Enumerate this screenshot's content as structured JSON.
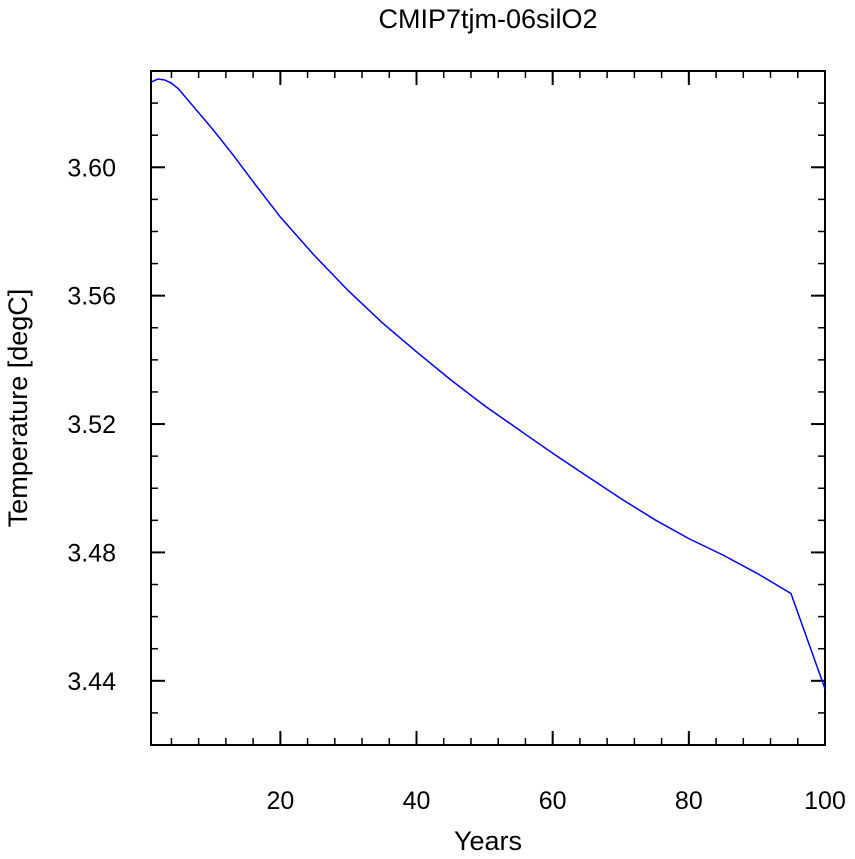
{
  "chart_data": {
    "type": "line",
    "title": "CMIP7tjm-06silO2",
    "xlabel": "Years",
    "ylabel": "Temperature [degC]",
    "xlim": [
      1,
      100
    ],
    "ylim": [
      3.42,
      3.63
    ],
    "x_ticks": [
      20,
      40,
      60,
      80,
      100
    ],
    "x_tick_labels": [
      "20",
      "40",
      "60",
      "80",
      "100"
    ],
    "y_ticks": [
      3.44,
      3.48,
      3.52,
      3.56,
      3.6
    ],
    "y_tick_labels": [
      "3.44",
      "3.48",
      "3.52",
      "3.56",
      "3.60"
    ],
    "grid": false,
    "line_color": "#0000ff",
    "series": [
      {
        "x": [
          1,
          2,
          3,
          4,
          5,
          7,
          10,
          13,
          16,
          20,
          25,
          30,
          35,
          40,
          45,
          50,
          55,
          56,
          60,
          65,
          70,
          75,
          80,
          85,
          90,
          95,
          100
        ],
        "values": [
          3.6265,
          3.6275,
          3.6272,
          3.6262,
          3.6245,
          3.6195,
          3.612,
          3.604,
          3.5955,
          3.5845,
          3.5725,
          3.5615,
          3.5515,
          3.5425,
          3.5338,
          3.5257,
          3.5183,
          3.5168,
          3.5109,
          3.5038,
          3.4968,
          3.4902,
          3.4843,
          3.4792,
          3.4735,
          3.4672,
          3.4375
        ]
      }
    ]
  }
}
